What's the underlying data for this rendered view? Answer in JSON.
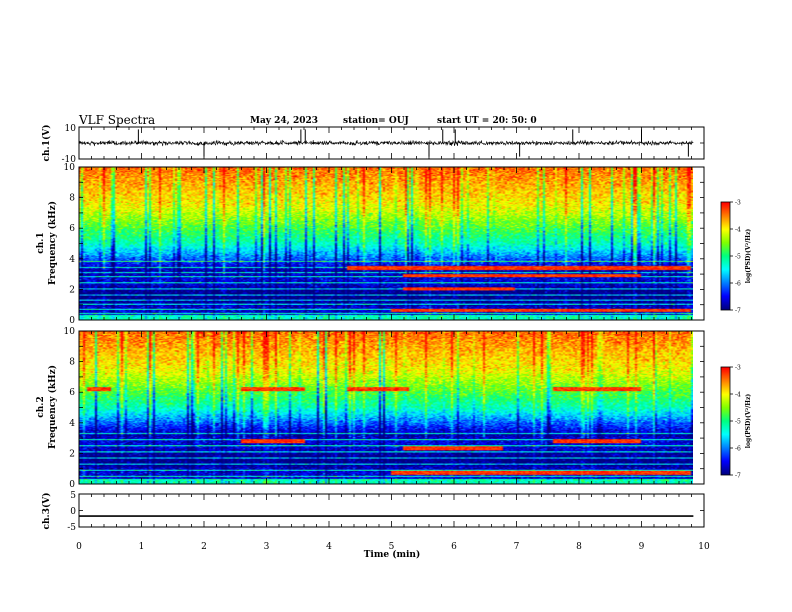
{
  "header": {
    "title": "VLF Spectra",
    "date": "May 24, 2023",
    "station": "station= OUJ",
    "start": "start  UT =   20: 50: 0"
  },
  "colors": {
    "colormap": [
      "#00007f",
      "#0000ff",
      "#0080ff",
      "#00ffff",
      "#00ff80",
      "#80ff00",
      "#ffff00",
      "#ff8000",
      "#ff0000"
    ],
    "trace": "#000000",
    "background": "#ffffff"
  },
  "chart_data": [
    {
      "type": "line",
      "name": "ch1-waveform",
      "ylabel": "ch.1(V)",
      "ylim": [
        -10,
        10
      ],
      "yticks": [
        "10",
        "-10"
      ],
      "x_range_min": [
        0,
        9.83
      ],
      "baseline_v": 0,
      "typical_amplitude_v": 2.5,
      "spike_times_min": [
        0.95,
        2.0,
        3.55,
        3.62,
        5.6,
        5.82,
        6.02,
        7.05,
        7.9,
        9.0,
        9.75
      ]
    },
    {
      "type": "heatmap",
      "name": "ch1-spectrogram",
      "ylabel": "ch.1\nFrequency (kHz)",
      "ylim_khz": [
        0,
        10
      ],
      "yticks": [
        "0",
        "2",
        "4",
        "6",
        "8",
        "10"
      ],
      "x_range_min": [
        0,
        9.83
      ],
      "colorbar": {
        "label": "log(PSD)(V²/Hz)",
        "range": [
          -7,
          -3
        ],
        "ticks": [
          "-3",
          "-4",
          "-5",
          "-6",
          "-7"
        ]
      },
      "narrowband_lines_khz": [
        0.4,
        0.7,
        1.0,
        1.3,
        1.6,
        2.0,
        2.4,
        2.8,
        3.1,
        3.4,
        3.8
      ],
      "tone_segments": [
        {
          "f_khz": 3.4,
          "t_min": [
            4.3,
            9.8
          ]
        },
        {
          "f_khz": 2.9,
          "t_min": [
            5.2,
            9.0
          ]
        },
        {
          "f_khz": 2.0,
          "t_min": [
            5.2,
            7.0
          ]
        },
        {
          "f_khz": 0.6,
          "t_min": [
            5.0,
            9.8
          ]
        }
      ]
    },
    {
      "type": "heatmap",
      "name": "ch2-spectrogram",
      "ylabel": "ch.2\nFrequency (kHz)",
      "ylim_khz": [
        0,
        10
      ],
      "yticks": [
        "0",
        "2",
        "4",
        "6",
        "8",
        "10"
      ],
      "x_range_min": [
        0,
        9.83
      ],
      "colorbar": {
        "label": "log(PSD)(V²/Hz)",
        "range": [
          -7,
          -3
        ],
        "ticks": [
          "-3",
          "-4",
          "-5",
          "-6",
          "-7"
        ]
      },
      "narrowband_lines_khz": [
        0.5,
        0.9,
        1.3,
        1.7,
        2.1,
        2.5,
        2.9,
        3.3
      ],
      "tone_segments": [
        {
          "f_khz": 6.2,
          "t_min": [
            0.1,
            0.5
          ]
        },
        {
          "f_khz": 6.2,
          "t_min": [
            2.6,
            3.6
          ]
        },
        {
          "f_khz": 6.2,
          "t_min": [
            4.3,
            5.3
          ]
        },
        {
          "f_khz": 6.2,
          "t_min": [
            7.6,
            9.0
          ]
        },
        {
          "f_khz": 2.8,
          "t_min": [
            2.6,
            3.6
          ]
        },
        {
          "f_khz": 2.8,
          "t_min": [
            7.6,
            9.0
          ]
        },
        {
          "f_khz": 2.3,
          "t_min": [
            5.2,
            6.8
          ]
        },
        {
          "f_khz": 0.7,
          "t_min": [
            5.0,
            9.8
          ]
        }
      ]
    },
    {
      "type": "line",
      "name": "ch3-waveform",
      "ylabel": "ch.3(V)",
      "ylim": [
        -5,
        5
      ],
      "yticks": [
        "5",
        "0",
        "-5"
      ],
      "x_range_min": [
        0,
        9.83
      ],
      "constant_value_v": -1.7
    }
  ],
  "xaxis": {
    "label": "Time  (min)",
    "xlim": [
      0,
      10
    ],
    "ticks": [
      "0",
      "1",
      "2",
      "3",
      "4",
      "5",
      "6",
      "7",
      "8",
      "9",
      "10"
    ]
  }
}
